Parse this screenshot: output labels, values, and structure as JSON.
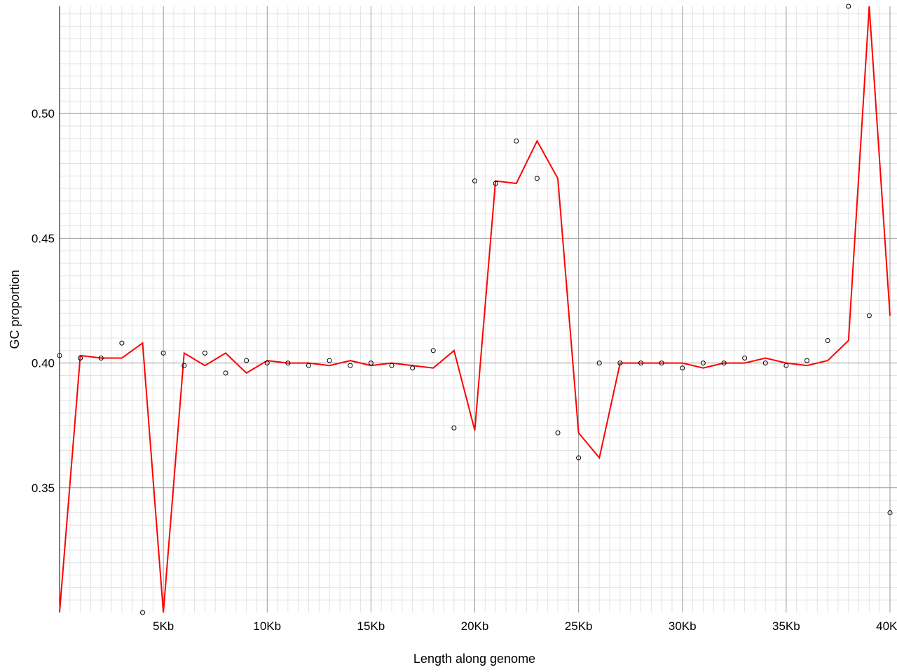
{
  "chart_data": {
    "type": "line",
    "title": "",
    "xlabel": "Length along genome",
    "ylabel": "GC proportion",
    "xlim": [
      0,
      40000
    ],
    "ylim": [
      0.3,
      0.543
    ],
    "grid": true,
    "x_ticks": [
      {
        "value": 5000,
        "label": "5Kb"
      },
      {
        "value": 10000,
        "label": "10Kb"
      },
      {
        "value": 15000,
        "label": "15Kb"
      },
      {
        "value": 20000,
        "label": "20Kb"
      },
      {
        "value": 25000,
        "label": "25Kb"
      },
      {
        "value": 30000,
        "label": "30Kb"
      },
      {
        "value": 35000,
        "label": "35Kb"
      },
      {
        "value": 40000,
        "label": "40Kb"
      }
    ],
    "y_ticks": [
      {
        "value": 0.35,
        "label": "0.35"
      },
      {
        "value": 0.4,
        "label": "0.40"
      },
      {
        "value": 0.45,
        "label": "0.45"
      },
      {
        "value": 0.5,
        "label": "0.50"
      }
    ],
    "series": [
      {
        "kind": "scatter",
        "color": "#000000",
        "points": [
          [
            0,
            0.403
          ],
          [
            1000,
            0.402
          ],
          [
            2000,
            0.402
          ],
          [
            3000,
            0.408
          ],
          [
            4000,
            0.3
          ],
          [
            5000,
            0.404
          ],
          [
            6000,
            0.399
          ],
          [
            7000,
            0.404
          ],
          [
            8000,
            0.396
          ],
          [
            9000,
            0.401
          ],
          [
            10000,
            0.4
          ],
          [
            11000,
            0.4
          ],
          [
            12000,
            0.399
          ],
          [
            13000,
            0.401
          ],
          [
            14000,
            0.399
          ],
          [
            15000,
            0.4
          ],
          [
            16000,
            0.399
          ],
          [
            17000,
            0.398
          ],
          [
            18000,
            0.405
          ],
          [
            19000,
            0.374
          ],
          [
            20000,
            0.473
          ],
          [
            21000,
            0.472
          ],
          [
            22000,
            0.489
          ],
          [
            23000,
            0.474
          ],
          [
            24000,
            0.372
          ],
          [
            25000,
            0.362
          ],
          [
            26000,
            0.4
          ],
          [
            27000,
            0.4
          ],
          [
            28000,
            0.4
          ],
          [
            29000,
            0.4
          ],
          [
            30000,
            0.398
          ],
          [
            31000,
            0.4
          ],
          [
            32000,
            0.4
          ],
          [
            33000,
            0.402
          ],
          [
            34000,
            0.4
          ],
          [
            35000,
            0.399
          ],
          [
            36000,
            0.401
          ],
          [
            37000,
            0.409
          ],
          [
            38000,
            0.543
          ],
          [
            39000,
            0.419
          ],
          [
            40000,
            0.34
          ]
        ]
      },
      {
        "kind": "line",
        "color": "#ff0000",
        "points": [
          [
            0,
            0.3
          ],
          [
            1000,
            0.403
          ],
          [
            2000,
            0.402
          ],
          [
            3000,
            0.402
          ],
          [
            4000,
            0.408
          ],
          [
            5000,
            0.3
          ],
          [
            6000,
            0.404
          ],
          [
            7000,
            0.399
          ],
          [
            8000,
            0.404
          ],
          [
            9000,
            0.396
          ],
          [
            10000,
            0.401
          ],
          [
            11000,
            0.4
          ],
          [
            12000,
            0.4
          ],
          [
            13000,
            0.399
          ],
          [
            14000,
            0.401
          ],
          [
            15000,
            0.399
          ],
          [
            16000,
            0.4
          ],
          [
            17000,
            0.399
          ],
          [
            18000,
            0.398
          ],
          [
            19000,
            0.405
          ],
          [
            20000,
            0.373
          ],
          [
            21000,
            0.473
          ],
          [
            22000,
            0.472
          ],
          [
            23000,
            0.489
          ],
          [
            24000,
            0.474
          ],
          [
            25000,
            0.372
          ],
          [
            26000,
            0.362
          ],
          [
            27000,
            0.4
          ],
          [
            28000,
            0.4
          ],
          [
            29000,
            0.4
          ],
          [
            30000,
            0.4
          ],
          [
            31000,
            0.398
          ],
          [
            32000,
            0.4
          ],
          [
            33000,
            0.4
          ],
          [
            34000,
            0.402
          ],
          [
            35000,
            0.4
          ],
          [
            36000,
            0.399
          ],
          [
            37000,
            0.401
          ],
          [
            38000,
            0.409
          ],
          [
            39000,
            0.543
          ],
          [
            40000,
            0.419
          ]
        ]
      }
    ]
  }
}
